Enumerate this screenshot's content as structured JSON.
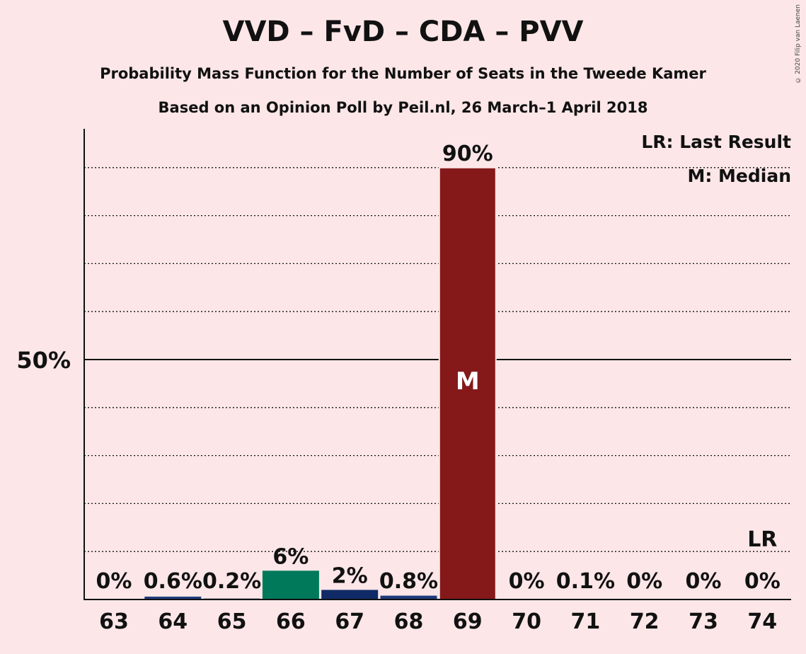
{
  "header": {
    "title": "VVD – FvD – CDA – PVV",
    "subtitle": "Probability Mass Function for the Number of Seats in the Tweede Kamer",
    "subtitle2": "Based on an Opinion Poll by Peil.nl, 26 March–1 April 2018",
    "copyright": "© 2020 Filip van Laenen"
  },
  "legend": {
    "lr": "LR: Last Result",
    "m": "M: Median"
  },
  "chart_data": {
    "type": "bar",
    "title": "VVD – FvD – CDA – PVV",
    "xlabel": "",
    "ylabel": "",
    "ylim": [
      0,
      100
    ],
    "yticks": [
      {
        "value": 50,
        "label": "50%"
      }
    ],
    "gridlines": [
      10,
      20,
      30,
      40,
      60,
      70,
      80,
      90
    ],
    "categories": [
      "63",
      "64",
      "65",
      "66",
      "67",
      "68",
      "69",
      "70",
      "71",
      "72",
      "73",
      "74"
    ],
    "values": [
      0,
      0.6,
      0.2,
      6,
      2,
      0.8,
      90,
      0,
      0.1,
      0,
      0,
      0
    ],
    "labels": [
      "0%",
      "0.6%",
      "0.2%",
      "6%",
      "2%",
      "0.8%",
      "90%",
      "0%",
      "0.1%",
      "0%",
      "0%",
      "0%"
    ],
    "colors": [
      "#1F3A7D",
      "#1F3A7D",
      "#1F3A7D",
      "#00795A",
      "#0F2A66",
      "#1F3A7D",
      "#85191A",
      "#1F3A7D",
      "#1F3A7D",
      "#1F3A7D",
      "#1F3A7D",
      "#1F3A7D"
    ],
    "median": {
      "category": "69",
      "label": "M"
    },
    "last_result": {
      "category": "74",
      "label": "LR"
    }
  }
}
